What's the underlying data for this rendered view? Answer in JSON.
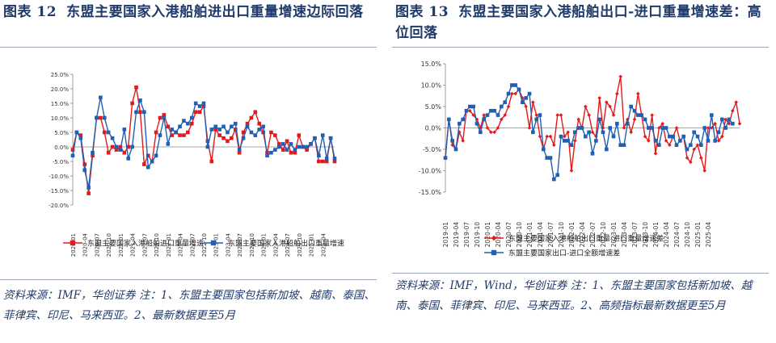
{
  "left": {
    "fig_label": "图表 12",
    "title": "东盟主要国家入港船舶进出口重量增速边际回落",
    "source": "资料来源：IMF，华创证券 注：1、东盟主要国家包括新加坡、越南、泰国、菲律宾、印尼、马来西亚。2、最新数据更至5月",
    "chart_data": {
      "type": "line",
      "ylim": [
        -20,
        25
      ],
      "yticks": [
        "25.0%",
        "20.0%",
        "15.0%",
        "10.0%",
        "5.0%",
        "0.0%",
        "-5.0%",
        "-10.0%",
        "-15.0%",
        "-20.0%"
      ],
      "xticks": [
        "2020-01",
        "2020-04",
        "2020-07",
        "2020-10",
        "2021-01",
        "2021-04",
        "2021-07",
        "2021-10",
        "2022-01",
        "2022-04",
        "2022-07",
        "2022-10",
        "2023-01",
        "2023-04",
        "2023-07",
        "2023-10",
        "2024-01",
        "2024-04",
        "2024-07",
        "2024-10",
        "2025-01",
        "2025-04"
      ],
      "legend": "bottom",
      "series": [
        {
          "name": "东盟主要国家入港船舶进口重量增速",
          "color": "#e31a1c",
          "marker": "square",
          "values": [
            -1,
            5,
            4,
            -6,
            -16,
            -3,
            10,
            10,
            5,
            -2,
            0,
            -1,
            0,
            -2,
            0,
            15,
            20.5,
            12,
            -6,
            -3,
            -5,
            5,
            10,
            11,
            7,
            4,
            5,
            4,
            4,
            5,
            8,
            12,
            12,
            14,
            2,
            -5,
            6,
            4,
            3,
            2,
            3,
            6,
            -2,
            5,
            8,
            10,
            12,
            8,
            5,
            -2,
            5,
            4,
            1,
            -1,
            2,
            -2,
            -2,
            4,
            0,
            -1,
            1,
            3,
            -5,
            -5,
            -5,
            3,
            -5
          ]
        },
        {
          "name": "东盟主要国家入港船舶出口重量增速",
          "color": "#1f5fb4",
          "marker": "square",
          "values": [
            -3,
            5,
            3,
            -8,
            -14,
            -2,
            10,
            17,
            10,
            5,
            3,
            0,
            -1,
            6,
            -4,
            0,
            12,
            16,
            12,
            -7,
            -5,
            -3,
            4,
            10,
            1,
            6,
            5,
            7,
            9,
            8,
            10,
            15,
            14,
            15,
            0,
            6,
            7,
            6,
            7,
            5,
            7,
            8,
            -1,
            3,
            7,
            5,
            4,
            6,
            7,
            -3,
            -2,
            -1,
            0,
            1,
            -1,
            1,
            -1,
            0,
            0,
            0,
            1,
            3,
            -3,
            4,
            -4,
            3,
            -4
          ]
        }
      ]
    }
  },
  "right": {
    "fig_label": "图表 13",
    "title": "东盟主要国家入港船舶出口-进口重量增速差：高位回落",
    "source": "资料来源：IMF，Wind，华创证券 注：1、东盟主要国家包括新加坡、越南、泰国、菲律宾、印尼、马来西亚。2、高频指标最新数据更至5月",
    "chart_data": {
      "type": "line",
      "ylim": [
        -15,
        15
      ],
      "yticks": [
        "15.0%",
        "10.0%",
        "5.0%",
        "0.0%",
        "-5.0%",
        "-10.0%",
        "-15.0%"
      ],
      "xticks": [
        "2019-01",
        "2019-04",
        "2019-07",
        "2019-10",
        "2020-01",
        "2020-04",
        "2020-07",
        "2020-10",
        "2021-01",
        "2021-04",
        "2021-07",
        "2021-10",
        "2022-01",
        "2022-04",
        "2022-07",
        "2022-10",
        "2023-01",
        "2023-04",
        "2023-07",
        "2023-10",
        "2024-01",
        "2024-04",
        "2024-07",
        "2024-10",
        "2025-01",
        "2025-04"
      ],
      "legend": "bottom",
      "series": [
        {
          "name": "东盟主要国家入港船舶出口重量-进口重量增速差",
          "color": "#e31a1c",
          "marker": "diamond",
          "values": [
            -7,
            2,
            -4,
            -5,
            -1,
            -3,
            4,
            4,
            3,
            2,
            0,
            3,
            0,
            -1,
            -1,
            0,
            2,
            3,
            5,
            8,
            8,
            9,
            7,
            5,
            0,
            6,
            3,
            -2,
            -5,
            -2,
            -2,
            -4,
            3,
            3,
            -2,
            -1,
            -10,
            -3,
            2,
            0,
            5,
            3,
            -1,
            -2,
            7,
            0,
            6,
            5,
            3,
            8,
            12,
            0,
            2,
            -1,
            2,
            8,
            3,
            -2,
            -3,
            3,
            -6,
            0,
            1,
            -3,
            -4,
            -2,
            0,
            -3,
            -2,
            -7,
            -8,
            -5,
            -4,
            -7,
            -10,
            0,
            0,
            1,
            -3,
            -2,
            2,
            1,
            4,
            6,
            1
          ]
        },
        {
          "name": "东盟主要国家出口-进口全额增速差",
          "color": "#1f5fb4",
          "marker": "square",
          "values": [
            -7,
            2,
            -3,
            -5,
            1,
            2,
            4,
            5,
            5,
            1,
            -1,
            2,
            3,
            4,
            4,
            3,
            5,
            6,
            8,
            10,
            10,
            9,
            6,
            7,
            8,
            -1,
            2,
            3,
            -5,
            -7,
            -7,
            -12,
            -11,
            -2,
            -3,
            -3,
            -4,
            -1,
            0,
            0,
            -2,
            -1,
            -6,
            -3,
            2,
            -1,
            -5,
            0,
            -2,
            1,
            -4,
            -4,
            1,
            5,
            4,
            3,
            3,
            2,
            0,
            0,
            -3,
            -4,
            0,
            0,
            -2,
            -2,
            -4,
            -3,
            -2,
            -5,
            -4,
            -1,
            -2,
            -4,
            0,
            -3,
            3,
            -3,
            -1,
            2,
            0,
            2,
            1
          ]
        }
      ]
    }
  }
}
